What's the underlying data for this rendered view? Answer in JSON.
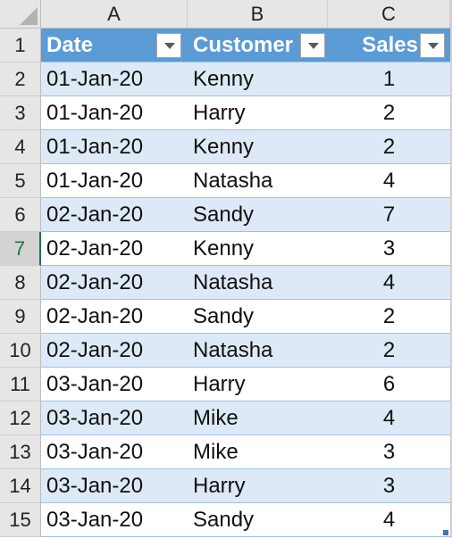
{
  "columns": {
    "a": "A",
    "b": "B",
    "c": "C"
  },
  "row_numbers": [
    "1",
    "2",
    "3",
    "4",
    "5",
    "6",
    "7",
    "8",
    "9",
    "10",
    "11",
    "12",
    "13",
    "14",
    "15"
  ],
  "active_row": "7",
  "table": {
    "headers": {
      "date": "Date",
      "customer": "Customer",
      "sales": "Sales"
    },
    "header_color": "#5b9bd5",
    "band_color": "#dde9f6",
    "rows": [
      {
        "date": "01-Jan-20",
        "customer": "Kenny",
        "sales": "1"
      },
      {
        "date": "01-Jan-20",
        "customer": "Harry",
        "sales": "2"
      },
      {
        "date": "01-Jan-20",
        "customer": "Kenny",
        "sales": "2"
      },
      {
        "date": "01-Jan-20",
        "customer": "Natasha",
        "sales": "4"
      },
      {
        "date": "02-Jan-20",
        "customer": "Sandy",
        "sales": "7"
      },
      {
        "date": "02-Jan-20",
        "customer": "Kenny",
        "sales": "3"
      },
      {
        "date": "02-Jan-20",
        "customer": "Natasha",
        "sales": "4"
      },
      {
        "date": "02-Jan-20",
        "customer": "Sandy",
        "sales": "2"
      },
      {
        "date": "02-Jan-20",
        "customer": "Natasha",
        "sales": "2"
      },
      {
        "date": "03-Jan-20",
        "customer": "Harry",
        "sales": "6"
      },
      {
        "date": "03-Jan-20",
        "customer": "Mike",
        "sales": "4"
      },
      {
        "date": "03-Jan-20",
        "customer": "Mike",
        "sales": "3"
      },
      {
        "date": "03-Jan-20",
        "customer": "Harry",
        "sales": "3"
      },
      {
        "date": "03-Jan-20",
        "customer": "Sandy",
        "sales": "4"
      }
    ]
  },
  "icons": {
    "filter": "filter-dropdown-icon",
    "select_all": "select-all-icon",
    "resize": "table-resize-handle-icon"
  }
}
